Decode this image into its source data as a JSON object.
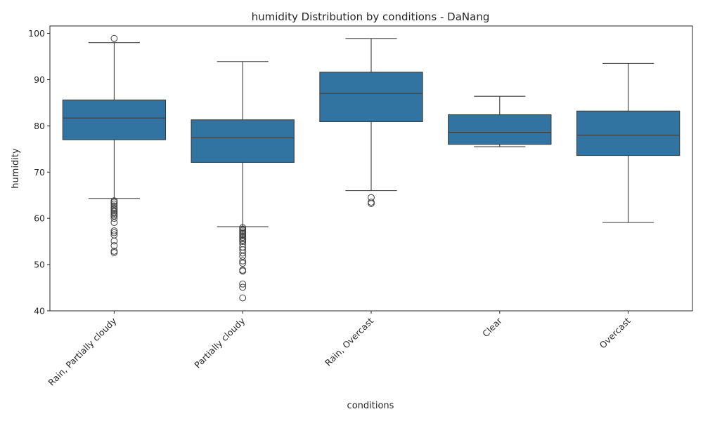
{
  "chart_data": {
    "type": "boxplot",
    "title": "humidity Distribution by conditions - DaNang",
    "xlabel": "conditions",
    "ylabel": "humidity",
    "ylim": [
      40,
      101.6
    ],
    "yticks": [
      40,
      50,
      60,
      70,
      80,
      90,
      100
    ],
    "box_color": "#3274a1",
    "line_color": "#3d3d3d",
    "categories": [
      "Rain, Partially cloudy",
      "Partially cloudy",
      "Rain, Overcast",
      "Clear",
      "Overcast"
    ],
    "boxes": [
      {
        "category": "Rain, Partially cloudy",
        "whisker_low": 64.3,
        "q1": 77.0,
        "median": 81.7,
        "q3": 85.6,
        "whisker_high": 98.0,
        "outliers": [
          98.9,
          63.8,
          63.5,
          63.1,
          62.7,
          62.3,
          62.0,
          61.7,
          61.4,
          61.1,
          60.8,
          60.5,
          60.0,
          59.1,
          57.3,
          56.9,
          56.4,
          55.1,
          54.1,
          52.9,
          52.6
        ]
      },
      {
        "category": "Partially cloudy",
        "whisker_low": 58.2,
        "q1": 72.1,
        "median": 77.4,
        "q3": 81.3,
        "whisker_high": 93.9,
        "outliers": [
          58.0,
          57.7,
          57.4,
          57.1,
          56.8,
          56.5,
          56.2,
          55.9,
          55.6,
          55.3,
          55.0,
          54.5,
          53.8,
          53.2,
          52.5,
          51.8,
          50.8,
          50.3,
          48.8,
          48.6,
          45.8,
          45.1,
          42.8
        ]
      },
      {
        "category": "Rain, Overcast",
        "whisker_low": 66.0,
        "q1": 80.9,
        "median": 87.0,
        "q3": 91.6,
        "whisker_high": 98.9,
        "outliers": [
          64.5,
          63.5,
          63.2
        ]
      },
      {
        "category": "Clear",
        "whisker_low": 75.5,
        "q1": 76.0,
        "median": 78.6,
        "q3": 82.4,
        "whisker_high": 86.4,
        "outliers": []
      },
      {
        "category": "Overcast",
        "whisker_low": 59.1,
        "q1": 73.6,
        "median": 78.0,
        "q3": 83.2,
        "whisker_high": 93.5,
        "outliers": []
      }
    ]
  }
}
